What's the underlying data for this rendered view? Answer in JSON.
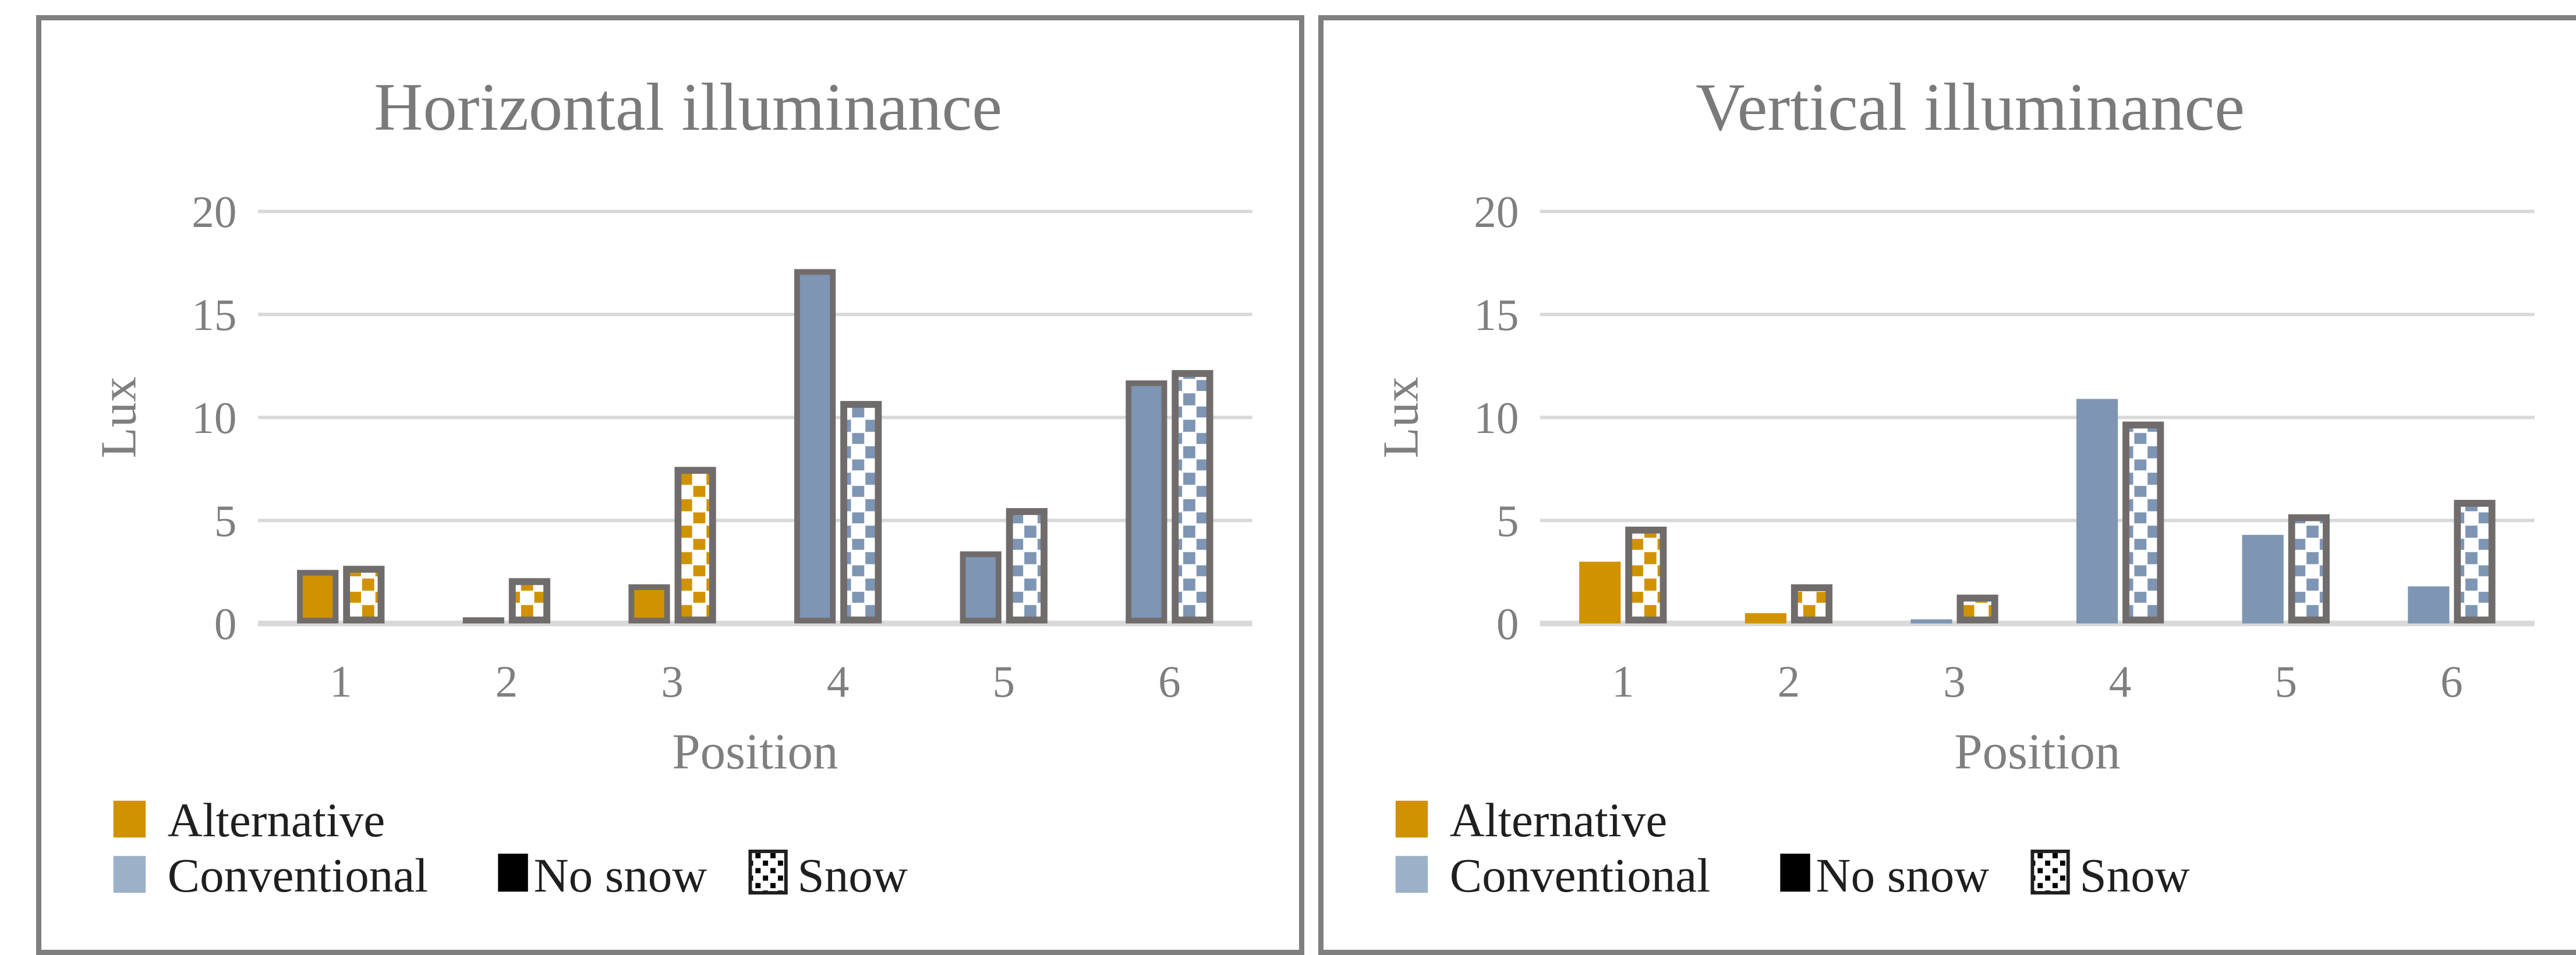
{
  "colors": {
    "alternative": "#D19200",
    "conventional": "#7E95B4",
    "legend_conventional": "#9BB1C8",
    "no_snow": "#000000",
    "bar_border": "#716C6C",
    "pattern_bg": "#FFFFFF",
    "gridline": "#D9D9D9",
    "axis_line": "#D9D9D9",
    "axis_text": "#7F7F7F",
    "title_text": "#7A7A7A",
    "legend_text": "#1F1F1F",
    "panel_border": "#7F7F7F"
  },
  "legend": {
    "alternative_label": "Alternative",
    "conventional_label": "Conventional",
    "no_snow_label": "No snow",
    "snow_label": "Snow"
  },
  "chart_data": [
    {
      "type": "bar",
      "title": "Horizontal illuminance",
      "ylabel": "Lux",
      "xlabel": "Position",
      "ylim": [
        0,
        20
      ],
      "yticks": [
        0,
        5,
        10,
        15,
        20
      ],
      "grid": true,
      "legend_position": "bottom-left",
      "categories": [
        "1",
        "2",
        "3",
        "4",
        "5",
        "6"
      ],
      "series": [
        {
          "name": "No snow",
          "pattern": "solid",
          "outlined": true,
          "values": [
            2.6,
            0.3,
            1.9,
            17.2,
            3.5,
            11.8
          ],
          "bar_colors": [
            "alternative",
            "alternative",
            "alternative",
            "conventional",
            "conventional",
            "conventional"
          ]
        },
        {
          "name": "Snow",
          "pattern": "checker",
          "outlined": true,
          "values": [
            2.8,
            2.2,
            7.6,
            10.8,
            5.6,
            12.3
          ],
          "bar_colors": [
            "alternative",
            "alternative",
            "alternative",
            "conventional",
            "conventional",
            "conventional"
          ]
        }
      ]
    },
    {
      "type": "bar",
      "title": "Vertical illuminance",
      "ylabel": "Lux",
      "xlabel": "Position",
      "ylim": [
        0,
        20
      ],
      "yticks": [
        0,
        5,
        10,
        15,
        20
      ],
      "grid": true,
      "legend_position": "bottom-left",
      "categories": [
        "1",
        "2",
        "3",
        "4",
        "5",
        "6"
      ],
      "series": [
        {
          "name": "No snow",
          "pattern": "solid",
          "outlined": false,
          "values": [
            3.0,
            0.5,
            0.2,
            10.9,
            4.3,
            1.8
          ],
          "bar_colors": [
            "alternative",
            "alternative",
            "conventional",
            "conventional",
            "conventional",
            "conventional"
          ]
        },
        {
          "name": "Snow",
          "pattern": "checker",
          "outlined": true,
          "values": [
            4.7,
            1.9,
            1.4,
            9.8,
            5.3,
            6.0
          ],
          "bar_colors": [
            "alternative",
            "alternative",
            "alternative",
            "conventional",
            "conventional",
            "conventional"
          ]
        }
      ]
    }
  ]
}
